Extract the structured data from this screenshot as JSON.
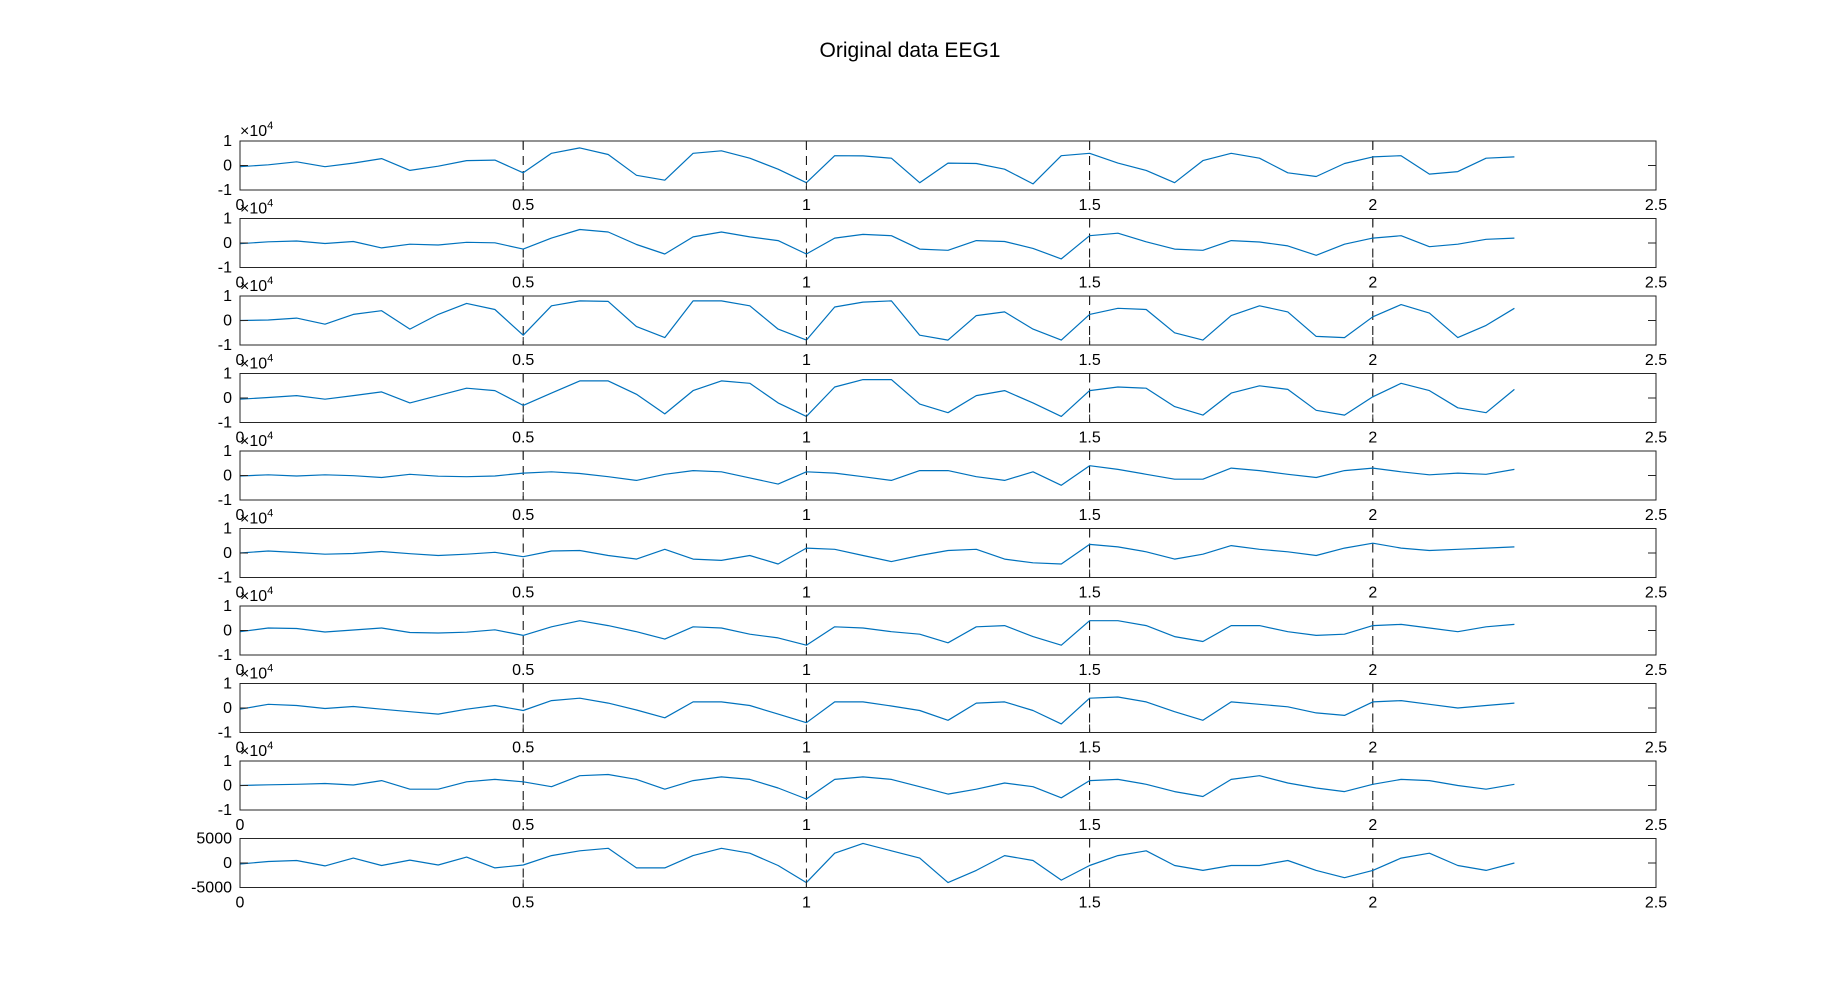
{
  "chart_data": {
    "type": "line",
    "title": "Original data EEG1",
    "line_color": "#0072bd",
    "axes_color": "#262626",
    "grid": false,
    "vertical_markers": {
      "x": [
        0.5,
        1,
        1.5,
        2
      ],
      "style": "dashed"
    },
    "xlim": [
      0,
      2.5
    ],
    "x_ticks": [
      0,
      0.5,
      1,
      1.5,
      2,
      2.5
    ],
    "x_tick_labels": [
      "0",
      "0.5",
      "1",
      "1.5",
      "2",
      "2.5"
    ],
    "x_step": 0.05,
    "subplots": [
      {
        "ylim": [
          -10000,
          10000
        ],
        "y_ticks": [
          -10000,
          0,
          10000
        ],
        "y_tick_labels": [
          "-1",
          "0",
          "1"
        ],
        "y_exponent": {
          "base": "×10",
          "power": "4"
        },
        "values": [
          -500,
          300,
          1500,
          -500,
          1000,
          2800,
          -2000,
          -300,
          2000,
          2200,
          -3000,
          5000,
          7200,
          4500,
          -4000,
          -6000,
          5000,
          6000,
          3000,
          -1500,
          -7000,
          4000,
          3900,
          3000,
          -7000,
          1000,
          800,
          -1500,
          -7500,
          4000,
          5000,
          1000,
          -2000,
          -7000,
          2000,
          5000,
          3000,
          -3000,
          -4500,
          800,
          3500,
          4000,
          -3500,
          -2500,
          3000,
          3500
        ]
      },
      {
        "ylim": [
          -10000,
          10000
        ],
        "y_ticks": [
          -10000,
          0,
          10000
        ],
        "y_tick_labels": [
          "-1",
          "0",
          "1"
        ],
        "y_exponent": {
          "base": "×10",
          "power": "4"
        },
        "values": [
          -300,
          500,
          800,
          -200,
          600,
          -2000,
          -500,
          -800,
          300,
          100,
          -2500,
          2000,
          5500,
          4500,
          -600,
          -4500,
          2500,
          4500,
          2500,
          1000,
          -4500,
          2000,
          3500,
          3000,
          -2500,
          -3000,
          1000,
          600,
          -2200,
          -6500,
          3000,
          4000,
          500,
          -2500,
          -3000,
          1000,
          400,
          -1200,
          -5000,
          -500,
          2000,
          3000,
          -1500,
          -500,
          1500,
          2000
        ]
      },
      {
        "ylim": [
          -10000,
          10000
        ],
        "y_ticks": [
          -10000,
          0,
          10000
        ],
        "y_tick_labels": [
          "-1",
          "0",
          "1"
        ],
        "y_exponent": {
          "base": "×10",
          "power": "4"
        },
        "values": [
          0,
          200,
          1000,
          -1500,
          2500,
          4000,
          -3500,
          2500,
          7000,
          4500,
          -6000,
          6000,
          8000,
          7800,
          -2500,
          -7000,
          8000,
          8000,
          6000,
          -3500,
          -8000,
          5500,
          7500,
          8000,
          -6000,
          -8000,
          2000,
          3500,
          -3500,
          -8000,
          2500,
          5000,
          4500,
          -5000,
          -8000,
          2000,
          6000,
          3500,
          -6500,
          -7000,
          1500,
          6500,
          3000,
          -7000,
          -2000,
          5000
        ]
      },
      {
        "ylim": [
          -10000,
          10000
        ],
        "y_ticks": [
          -10000,
          0,
          10000
        ],
        "y_tick_labels": [
          "-1",
          "0",
          "1"
        ],
        "y_exponent": {
          "base": "×10",
          "power": "4"
        },
        "values": [
          -500,
          200,
          1000,
          -500,
          1000,
          2500,
          -2000,
          1000,
          4000,
          3000,
          -3000,
          2000,
          7000,
          7000,
          1500,
          -6500,
          3000,
          7000,
          6000,
          -2000,
          -7500,
          4500,
          7500,
          7500,
          -2500,
          -6000,
          1000,
          3000,
          -2000,
          -7500,
          3000,
          4500,
          4000,
          -3500,
          -7000,
          2000,
          5000,
          3500,
          -5000,
          -7000,
          500,
          6000,
          3000,
          -4000,
          -6000,
          3500
        ]
      },
      {
        "ylim": [
          -10000,
          10000
        ],
        "y_ticks": [
          -10000,
          0,
          10000
        ],
        "y_tick_labels": [
          "-1",
          "0",
          "1"
        ],
        "y_exponent": {
          "base": "×10",
          "power": "4"
        },
        "values": [
          -200,
          300,
          -200,
          300,
          -100,
          -800,
          500,
          -300,
          -500,
          -200,
          1000,
          1500,
          800,
          -500,
          -2000,
          500,
          2000,
          1500,
          -1000,
          -3500,
          1500,
          1000,
          -500,
          -2000,
          2000,
          2000,
          -500,
          -2000,
          1500,
          -4000,
          4000,
          2500,
          500,
          -1500,
          -1500,
          3000,
          2000,
          500,
          -800,
          2000,
          3000,
          1500,
          300,
          1000,
          500,
          2500
        ]
      },
      {
        "ylim": [
          -10000,
          10000
        ],
        "y_ticks": [
          -10000,
          0,
          10000
        ],
        "y_tick_labels": [
          "-1",
          "0",
          "1"
        ],
        "y_exponent": {
          "base": "×10",
          "power": "4"
        },
        "values": [
          0,
          800,
          200,
          -500,
          -200,
          600,
          -300,
          -1000,
          -500,
          300,
          -1500,
          800,
          1000,
          -1000,
          -2500,
          1500,
          -2500,
          -3000,
          -1000,
          -4500,
          2000,
          1500,
          -1000,
          -3500,
          -1000,
          1000,
          1500,
          -2500,
          -4000,
          -4500,
          3500,
          2500,
          500,
          -2500,
          -500,
          3000,
          1500,
          500,
          -1000,
          2000,
          4000,
          2000,
          1000,
          1500,
          2000,
          2500
        ]
      },
      {
        "ylim": [
          -10000,
          10000
        ],
        "y_ticks": [
          -10000,
          0,
          10000
        ],
        "y_tick_labels": [
          "-1",
          "0",
          "1"
        ],
        "y_exponent": {
          "base": "×10",
          "power": "4"
        },
        "values": [
          -500,
          1000,
          800,
          -600,
          200,
          1000,
          -800,
          -1000,
          -700,
          300,
          -2000,
          1500,
          4000,
          2000,
          -500,
          -3500,
          1500,
          1000,
          -1500,
          -3000,
          -6000,
          1500,
          1000,
          -500,
          -1500,
          -5000,
          1500,
          2000,
          -2500,
          -6000,
          4000,
          4000,
          2000,
          -2500,
          -4500,
          2000,
          2000,
          -500,
          -2000,
          -1500,
          2000,
          2500,
          1000,
          -500,
          1500,
          2500
        ]
      },
      {
        "ylim": [
          -10000,
          10000
        ],
        "y_ticks": [
          -10000,
          0,
          10000
        ],
        "y_tick_labels": [
          "-1",
          "0",
          "1"
        ],
        "y_exponent": {
          "base": "×10",
          "power": "4"
        },
        "values": [
          -500,
          1500,
          1000,
          -200,
          600,
          -500,
          -1500,
          -2500,
          -500,
          1000,
          -1000,
          3000,
          4000,
          2000,
          -800,
          -4000,
          2500,
          2500,
          1000,
          -2500,
          -6000,
          2500,
          2500,
          800,
          -1000,
          -5000,
          2000,
          2500,
          -1000,
          -6500,
          4000,
          4500,
          2500,
          -1500,
          -5000,
          2500,
          1500,
          500,
          -2000,
          -3000,
          2500,
          3000,
          1500,
          0,
          1000,
          2000
        ]
      },
      {
        "ylim": [
          -10000,
          10000
        ],
        "y_ticks": [
          -10000,
          0,
          10000
        ],
        "y_tick_labels": [
          "-1",
          "0",
          "1"
        ],
        "y_exponent": {
          "base": "×10",
          "power": "4"
        },
        "values": [
          0,
          300,
          500,
          800,
          200,
          2000,
          -1500,
          -1500,
          1500,
          2500,
          1500,
          -500,
          4000,
          4500,
          2500,
          -1500,
          2000,
          3500,
          2500,
          -1000,
          -5500,
          2500,
          3500,
          2500,
          -500,
          -3500,
          -1500,
          1000,
          -500,
          -5000,
          2000,
          2500,
          500,
          -2500,
          -4500,
          2500,
          4000,
          1000,
          -1000,
          -2500,
          500,
          2500,
          2000,
          0,
          -1500,
          500
        ]
      },
      {
        "ylim": [
          -5000,
          5000
        ],
        "y_ticks": [
          -5000,
          0,
          5000
        ],
        "y_tick_labels": [
          "-5000",
          "0",
          "5000"
        ],
        "y_exponent": null,
        "values": [
          -200,
          300,
          500,
          -600,
          1000,
          -500,
          600,
          -400,
          1200,
          -1000,
          -400,
          1500,
          2500,
          3000,
          -1000,
          -1000,
          1500,
          3000,
          2000,
          -500,
          -4000,
          2000,
          4000,
          2500,
          1000,
          -4000,
          -1500,
          1500,
          500,
          -3500,
          -500,
          1500,
          2500,
          -500,
          -1500,
          -500,
          -500,
          500,
          -1500,
          -3000,
          -1500,
          1000,
          2000,
          -500,
          -1500,
          0
        ]
      }
    ]
  }
}
